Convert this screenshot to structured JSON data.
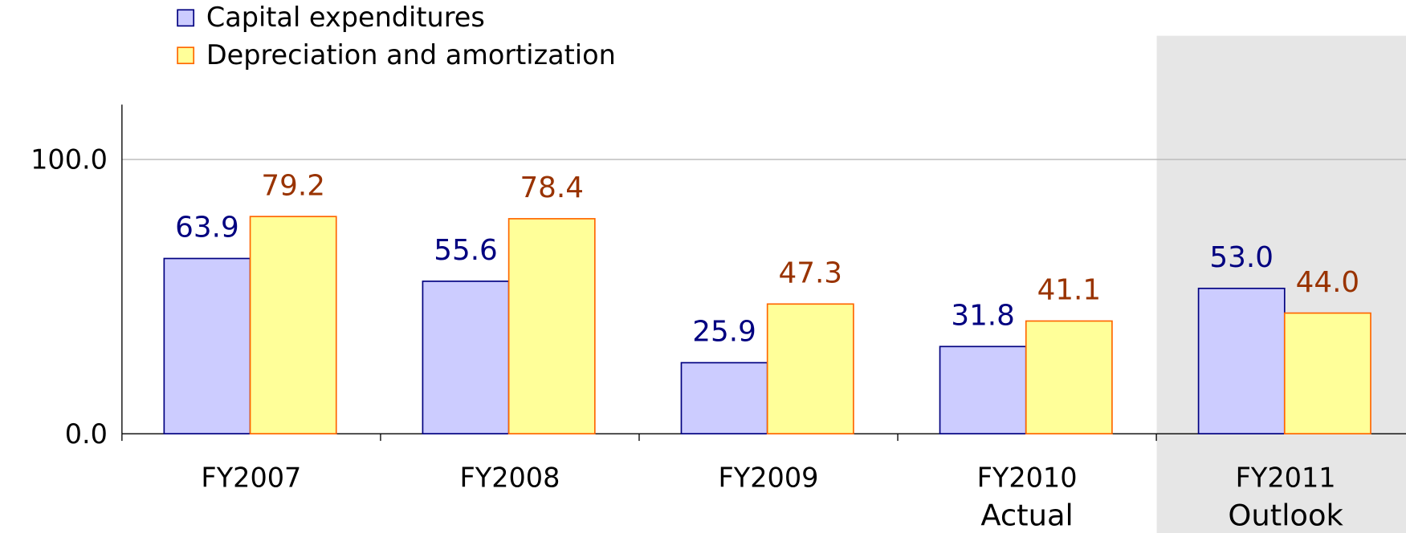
{
  "chart_data": {
    "type": "bar",
    "categories": [
      "FY2007",
      "FY2008",
      "FY2009",
      "FY2010",
      "FY2011"
    ],
    "category_sublabels": [
      null,
      null,
      null,
      "Actual",
      "Outlook"
    ],
    "series": [
      {
        "name": "Capital expenditures",
        "color": "#ccccff",
        "edge_color": "#000080",
        "label_color": "#000080",
        "values": [
          63.9,
          55.6,
          25.9,
          31.8,
          53.0
        ],
        "value_labels": [
          "63.9",
          "55.6",
          "25.9",
          "31.8",
          "53.0"
        ]
      },
      {
        "name": "Depreciation and amortization",
        "color": "#ffff99",
        "edge_color": "#ff6600",
        "label_color": "#993300",
        "values": [
          79.2,
          78.4,
          47.3,
          41.1,
          44.0
        ],
        "value_labels": [
          "79.2",
          "78.4",
          "47.3",
          "41.1",
          "44.0"
        ]
      }
    ],
    "ylim": [
      0,
      120
    ],
    "yticks": [
      {
        "value": 0,
        "label": "0.0"
      },
      {
        "value": 100,
        "label": "100.0"
      }
    ],
    "grid": true
  }
}
